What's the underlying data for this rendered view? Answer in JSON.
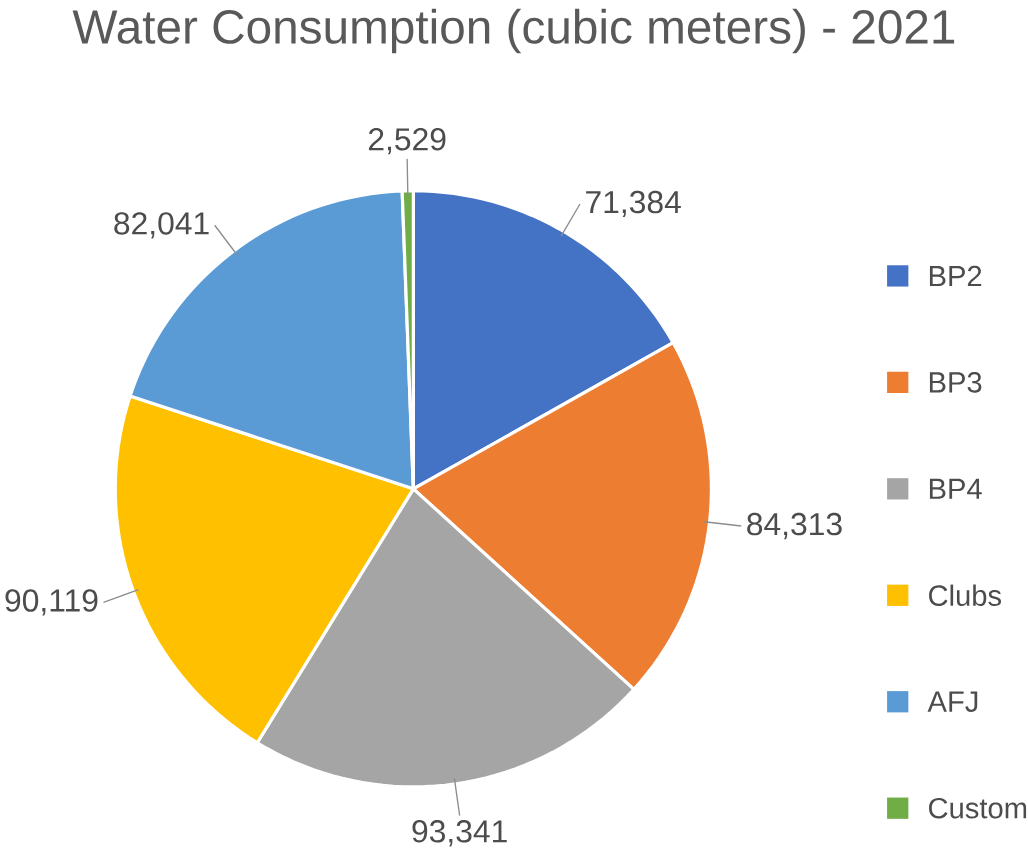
{
  "chart_data": {
    "type": "pie",
    "title": "Water Consumption  (cubic meters) - 2021",
    "categories": [
      "BP2",
      "BP3",
      "BP4",
      "Clubs",
      "AFJ",
      "Custom"
    ],
    "values": [
      71384,
      84313,
      93341,
      90119,
      82041,
      2529
    ],
    "value_labels": [
      "71,384",
      "84,313",
      "93,341",
      "90,119",
      "82,041",
      "2,529"
    ],
    "colors": [
      "#4472c4",
      "#ed7d31",
      "#a5a5a5",
      "#ffc000",
      "#5b9bd5",
      "#70ad47"
    ],
    "legend": "right"
  }
}
